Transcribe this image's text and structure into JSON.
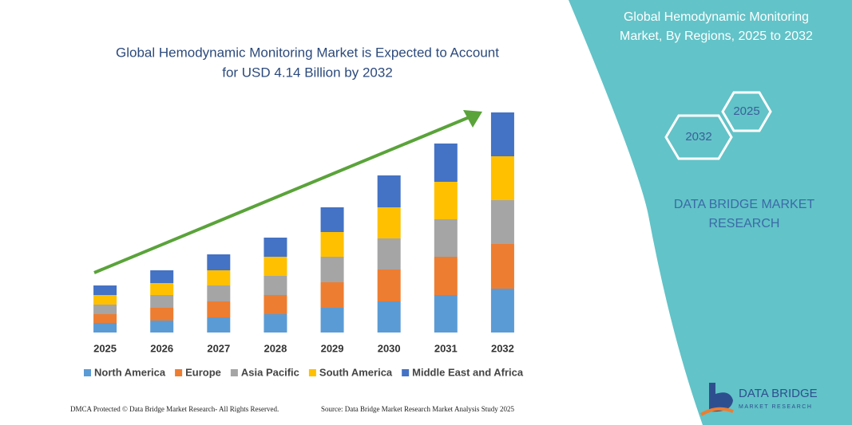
{
  "chart_data": {
    "type": "stacked_bar",
    "title": [
      "Global Hemodynamic Monitoring Market is Expected to Account",
      "for USD 4.14 Billion by 2032"
    ],
    "categories": [
      "2025",
      "2026",
      "2027",
      "2028",
      "2029",
      "2030",
      "2031",
      "2032"
    ],
    "series": [
      {
        "name": "North America",
        "color": "#5b9bd5",
        "values": [
          12,
          15,
          19,
          23,
          31,
          39,
          47,
          55
        ]
      },
      {
        "name": "Europe",
        "color": "#ed7d31",
        "values": [
          11,
          16,
          20,
          24,
          32,
          40,
          48,
          56
        ]
      },
      {
        "name": "Asia Pacific",
        "color": "#a5a5a5",
        "values": [
          12,
          16,
          20,
          24,
          32,
          39,
          47,
          55
        ]
      },
      {
        "name": "South America",
        "color": "#ffc000",
        "values": [
          12,
          15,
          19,
          24,
          31,
          39,
          47,
          55
        ]
      },
      {
        "name": "Middle East and Africa",
        "color": "#4472c4",
        "values": [
          12,
          16,
          20,
          24,
          31,
          40,
          48,
          55
        ]
      }
    ],
    "ylim": [
      0,
      300
    ]
  },
  "side_panel": {
    "title": [
      "Global Hemodynamic Monitoring",
      "Market, By Regions, 2025 to 2032"
    ],
    "hex_start": "2025",
    "hex_end": "2032",
    "brand": [
      "DATA BRIDGE MARKET",
      "RESEARCH"
    ]
  },
  "logo": {
    "name": "DATA BRIDGE",
    "tagline": "MARKET RESEARCH"
  },
  "footer": {
    "left": "DMCA Protected © Data Bridge Market Research-  All Rights Reserved.",
    "right": "Source: Data Bridge Market Research  Market Analysis Study 2025"
  }
}
